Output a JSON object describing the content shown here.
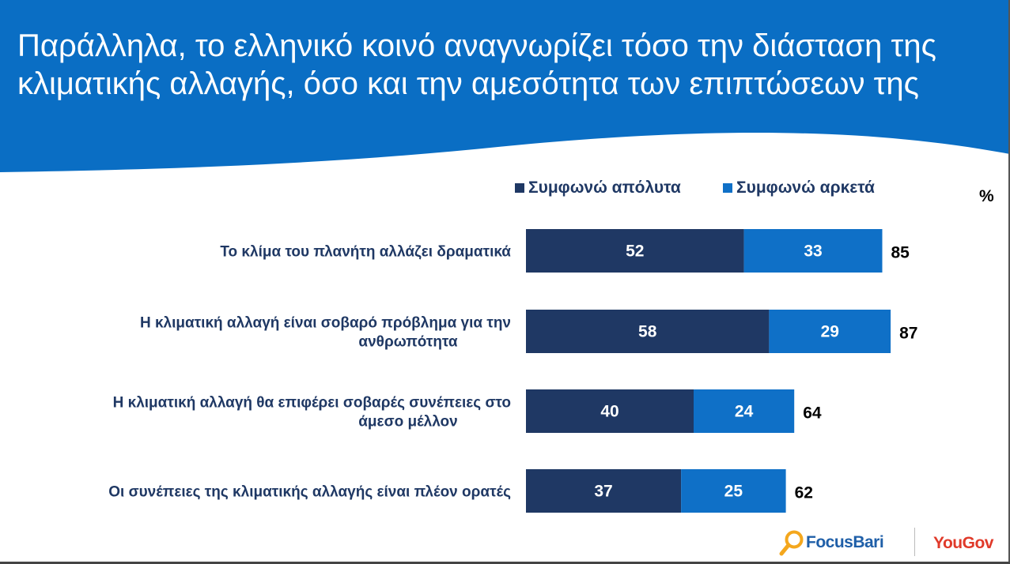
{
  "header": {
    "title": "Παράλληλα, το ελληνικό κοινό αναγνωρίζει τόσο την διάσταση της κλιματικής αλλαγής, όσο και την αμεσότητα των επιπτώσεων της"
  },
  "colors": {
    "header_blue": "#0a6ec4",
    "dark_series": "#1f3864",
    "light_series": "#0f70c7",
    "focus_blue": "#1f5fa8",
    "yougov_red": "#e03a2a"
  },
  "legend": {
    "series_1": "Συμφωνώ απόλυτα",
    "series_2": "Συμφωνώ αρκετά",
    "unit": "%"
  },
  "chart_data": {
    "type": "bar",
    "orientation": "horizontal",
    "stacked": true,
    "unit": "%",
    "categories": [
      [
        "Το κλίμα του πλανήτη αλλάζει δραματικά"
      ],
      [
        "Η κλιματική αλλαγή είναι σοβαρό πρόβλημα για την",
        "ανθρωπότητα"
      ],
      [
        "Η κλιματική αλλαγή θα επιφέρει σοβαρές συνέπειες στο",
        "άμεσο μέλλον"
      ],
      [
        "Οι συνέπειες της κλιματικής αλλαγής είναι πλέον ορατές"
      ]
    ],
    "series": [
      {
        "name": "Συμφωνώ απόλυτα",
        "values": [
          52,
          58,
          40,
          37
        ]
      },
      {
        "name": "Συμφωνώ αρκετά",
        "values": [
          33,
          29,
          24,
          25
        ]
      }
    ],
    "totals": [
      85,
      87,
      64,
      62
    ],
    "xlim": [
      0,
      100
    ],
    "grid": false,
    "legend_position": "top"
  },
  "logos": {
    "focus": "FocusBari",
    "yougov": "YouGov"
  }
}
